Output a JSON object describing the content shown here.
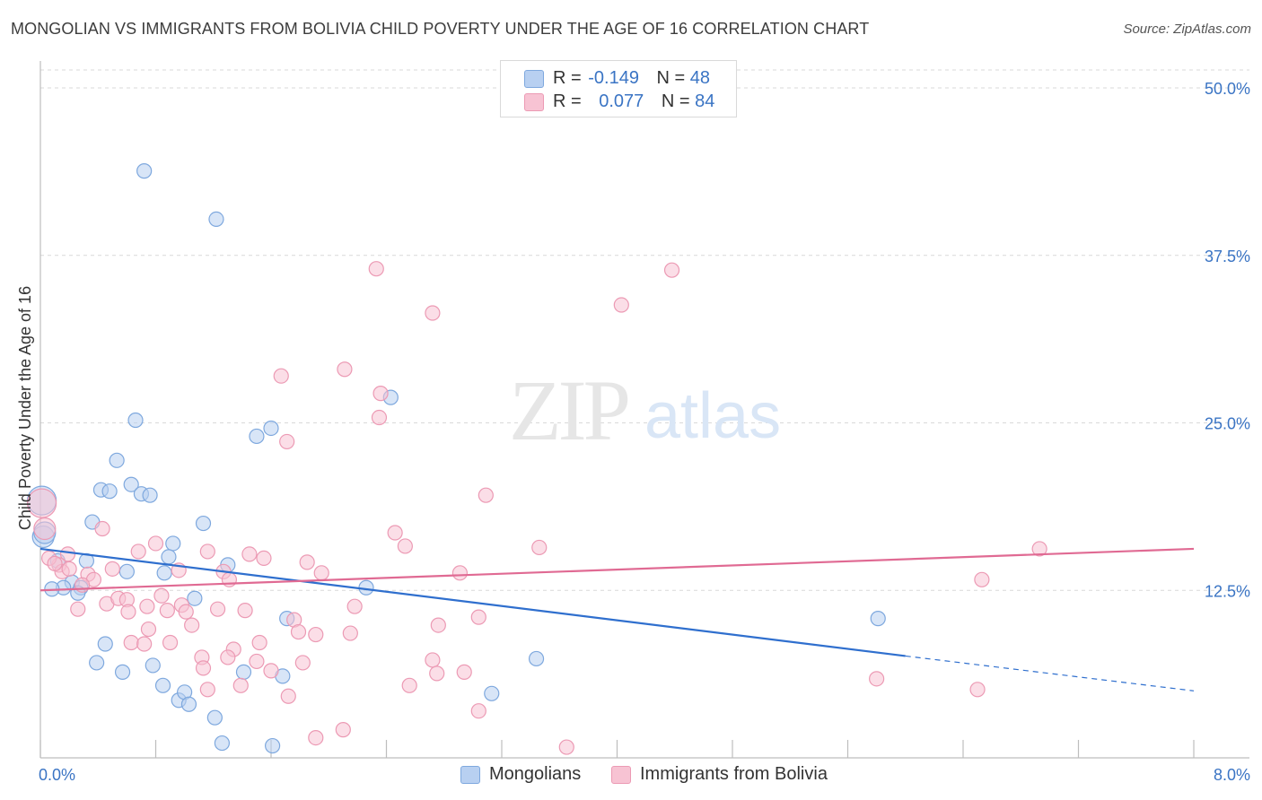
{
  "header": {
    "title": "MONGOLIAN VS IMMIGRANTS FROM BOLIVIA CHILD POVERTY UNDER THE AGE OF 16 CORRELATION CHART",
    "source": "Source: ZipAtlas.com"
  },
  "watermark": {
    "zip": "ZIP",
    "atlas": "atlas"
  },
  "legend": {
    "rows": [
      {
        "r_label": "R =",
        "r_value": "-0.149",
        "n_label": "N =",
        "n_value": "48"
      },
      {
        "r_label": "R =",
        "r_value": "0.077",
        "n_label": "N =",
        "n_value": "84"
      }
    ]
  },
  "bottom_legend": {
    "series1": "Mongolians",
    "series2": "Immigrants from Bolivia"
  },
  "colors": {
    "blue_fill": "#b8d0f1",
    "blue_stroke": "#7ea8de",
    "blue_line": "#2f6fce",
    "pink_fill": "#f7c3d3",
    "pink_stroke": "#ec9ab4",
    "pink_line": "#e06a93",
    "tick_text": "#3a74c4",
    "grid": "#d9d9d9"
  },
  "chart_data": {
    "type": "scatter",
    "title": "MONGOLIAN VS IMMIGRANTS FROM BOLIVIA CHILD POVERTY UNDER THE AGE OF 16 CORRELATION CHART",
    "xlabel": "",
    "ylabel": "Child Poverty Under the Age of 16",
    "xlim": [
      0,
      8.4
    ],
    "ylim": [
      0,
      52
    ],
    "x_tick_labels": [
      "0.0%",
      "8.0%"
    ],
    "y_ticks": [
      12.5,
      25,
      37.5,
      50
    ],
    "y_tick_labels": [
      "12.5%",
      "25.0%",
      "37.5%",
      "50.0%"
    ],
    "grid": true,
    "legend_position": "top-center",
    "series": [
      {
        "name": "Mongolians",
        "r": -0.149,
        "n": 48,
        "trend": {
          "x0": 0,
          "y0": 15.6,
          "x1": 6.0,
          "y1": 7.6,
          "dash_to_x": 8.0,
          "dash_to_y": 5.0
        },
        "points": [
          [
            0.72,
            43.8
          ],
          [
            1.22,
            40.2
          ],
          [
            0.66,
            25.2
          ],
          [
            1.6,
            24.6
          ],
          [
            1.5,
            24.0
          ],
          [
            2.43,
            26.9
          ],
          [
            0.53,
            22.2
          ],
          [
            0.42,
            20.0
          ],
          [
            0.48,
            19.9
          ],
          [
            0.63,
            20.4
          ],
          [
            0.7,
            19.7
          ],
          [
            0.76,
            19.6
          ],
          [
            0.36,
            17.6
          ],
          [
            1.13,
            17.5
          ],
          [
            0.92,
            16.0
          ],
          [
            0.89,
            15.0
          ],
          [
            0.32,
            14.7
          ],
          [
            0.6,
            13.9
          ],
          [
            0.86,
            13.8
          ],
          [
            1.3,
            14.4
          ],
          [
            0.12,
            14.7
          ],
          [
            0.22,
            13.1
          ],
          [
            0.16,
            12.7
          ],
          [
            0.28,
            12.7
          ],
          [
            0.26,
            12.3
          ],
          [
            0.08,
            12.6
          ],
          [
            1.07,
            11.9
          ],
          [
            2.26,
            12.7
          ],
          [
            1.71,
            10.4
          ],
          [
            0.45,
            8.5
          ],
          [
            0.39,
            7.1
          ],
          [
            0.57,
            6.4
          ],
          [
            0.78,
            6.9
          ],
          [
            0.85,
            5.4
          ],
          [
            1.41,
            6.4
          ],
          [
            1.68,
            6.1
          ],
          [
            0.96,
            4.3
          ],
          [
            1.0,
            4.9
          ],
          [
            1.03,
            4.0
          ],
          [
            1.21,
            3.0
          ],
          [
            3.13,
            4.8
          ],
          [
            3.44,
            7.4
          ],
          [
            5.81,
            10.4
          ],
          [
            1.26,
            1.1
          ],
          [
            1.61,
            0.9
          ],
          [
            0.02,
            16.5
          ],
          [
            0.01,
            19.2
          ],
          [
            0.03,
            16.8
          ]
        ]
      },
      {
        "name": "Immigrants from Bolivia",
        "r": 0.077,
        "n": 84,
        "trend": {
          "x0": 0,
          "y0": 12.5,
          "x1": 8.0,
          "y1": 15.6
        },
        "points": [
          [
            2.33,
            36.5
          ],
          [
            4.38,
            36.4
          ],
          [
            2.72,
            33.2
          ],
          [
            4.03,
            33.8
          ],
          [
            1.67,
            28.5
          ],
          [
            2.11,
            29.0
          ],
          [
            2.36,
            27.2
          ],
          [
            2.35,
            25.4
          ],
          [
            1.71,
            23.6
          ],
          [
            3.09,
            19.6
          ],
          [
            2.46,
            16.8
          ],
          [
            2.53,
            15.8
          ],
          [
            3.46,
            15.7
          ],
          [
            6.93,
            15.6
          ],
          [
            0.43,
            17.1
          ],
          [
            0.8,
            16.0
          ],
          [
            0.68,
            15.4
          ],
          [
            1.16,
            15.4
          ],
          [
            1.45,
            15.2
          ],
          [
            1.55,
            14.9
          ],
          [
            0.19,
            15.2
          ],
          [
            0.13,
            14.4
          ],
          [
            0.15,
            13.9
          ],
          [
            0.33,
            13.7
          ],
          [
            0.37,
            13.3
          ],
          [
            0.5,
            14.1
          ],
          [
            0.96,
            14.0
          ],
          [
            1.27,
            13.9
          ],
          [
            1.31,
            13.3
          ],
          [
            1.85,
            14.6
          ],
          [
            1.95,
            13.8
          ],
          [
            2.91,
            13.8
          ],
          [
            6.53,
            13.3
          ],
          [
            0.29,
            12.9
          ],
          [
            0.26,
            11.1
          ],
          [
            0.46,
            11.5
          ],
          [
            0.54,
            11.9
          ],
          [
            0.6,
            11.8
          ],
          [
            0.61,
            10.9
          ],
          [
            0.74,
            11.3
          ],
          [
            0.84,
            12.1
          ],
          [
            0.88,
            11.0
          ],
          [
            0.98,
            11.4
          ],
          [
            1.01,
            10.9
          ],
          [
            1.23,
            11.1
          ],
          [
            1.42,
            11.0
          ],
          [
            2.18,
            11.3
          ],
          [
            0.63,
            8.6
          ],
          [
            0.72,
            8.5
          ],
          [
            0.75,
            9.6
          ],
          [
            0.9,
            8.6
          ],
          [
            1.05,
            9.9
          ],
          [
            1.12,
            7.5
          ],
          [
            1.13,
            6.7
          ],
          [
            1.34,
            8.1
          ],
          [
            1.52,
            8.6
          ],
          [
            1.5,
            7.2
          ],
          [
            1.76,
            10.3
          ],
          [
            1.79,
            9.4
          ],
          [
            1.91,
            9.2
          ],
          [
            2.15,
            9.3
          ],
          [
            2.76,
            9.9
          ],
          [
            3.04,
            10.5
          ],
          [
            1.3,
            7.5
          ],
          [
            1.6,
            6.5
          ],
          [
            1.82,
            7.1
          ],
          [
            2.72,
            7.3
          ],
          [
            2.75,
            6.3
          ],
          [
            2.94,
            6.4
          ],
          [
            1.16,
            5.1
          ],
          [
            1.39,
            5.4
          ],
          [
            1.72,
            4.6
          ],
          [
            2.56,
            5.4
          ],
          [
            3.04,
            3.5
          ],
          [
            5.8,
            5.9
          ],
          [
            6.5,
            5.1
          ],
          [
            1.91,
            1.5
          ],
          [
            2.1,
            2.1
          ],
          [
            3.65,
            0.8
          ],
          [
            0.03,
            17.1
          ],
          [
            0.01,
            19.0
          ],
          [
            0.06,
            14.9
          ],
          [
            0.1,
            14.5
          ],
          [
            0.2,
            14.1
          ]
        ]
      }
    ]
  }
}
